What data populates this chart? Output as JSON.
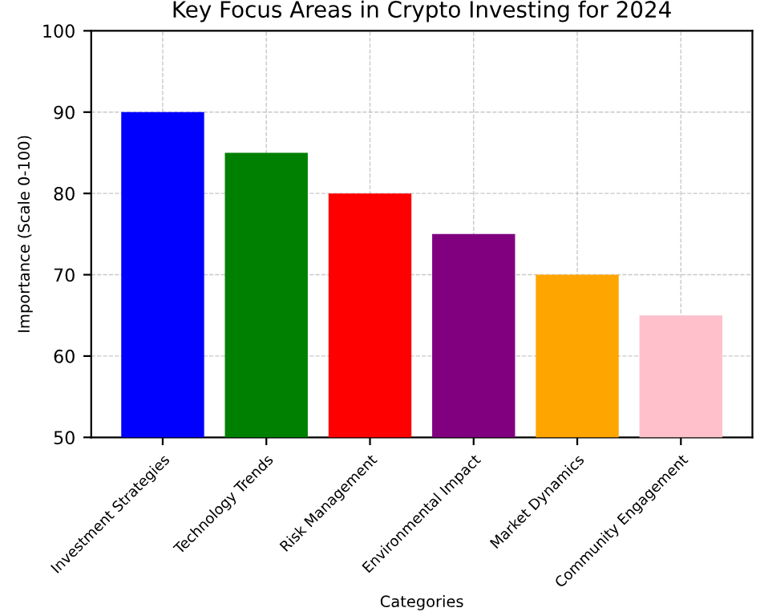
{
  "chart_data": {
    "type": "bar",
    "title": "Key Focus Areas in Crypto Investing for 2024",
    "xlabel": "Categories",
    "ylabel": "Importance (Scale 0-100)",
    "categories": [
      "Investment Strategies",
      "Technology Trends",
      "Risk Management",
      "Environmental Impact",
      "Market Dynamics",
      "Community Engagement"
    ],
    "values": [
      90,
      85,
      80,
      75,
      70,
      65
    ],
    "colors": [
      "#0000ff",
      "#008000",
      "#ff0000",
      "#800080",
      "#ffa500",
      "#ffc0cb"
    ],
    "ylim": [
      50,
      100
    ],
    "yticks": [
      50,
      60,
      70,
      80,
      90,
      100
    ],
    "grid": true
  }
}
